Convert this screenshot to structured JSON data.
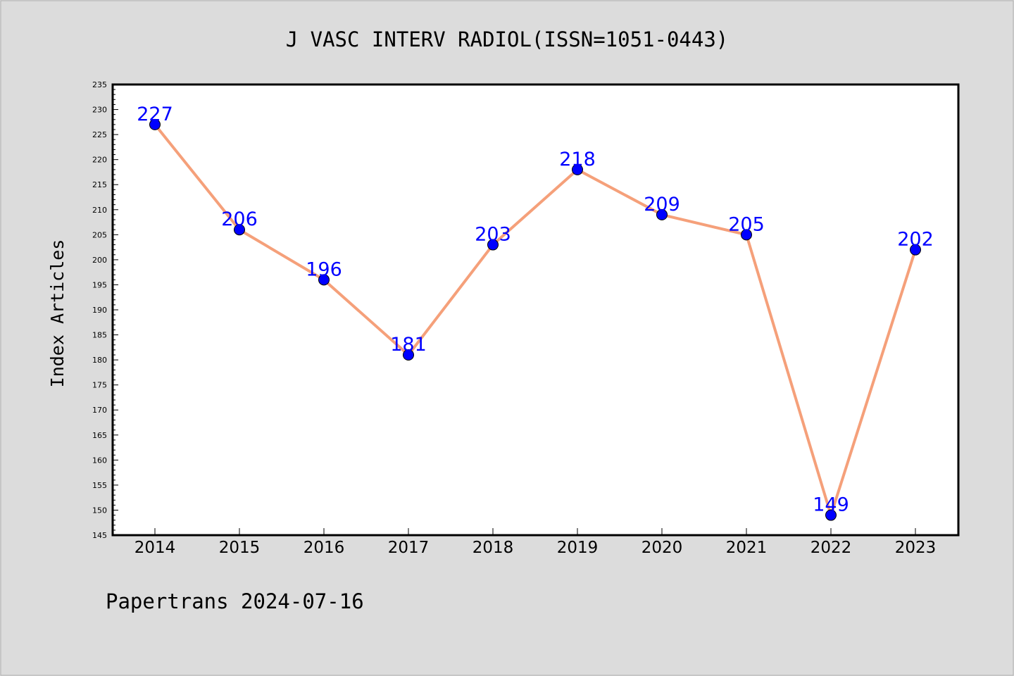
{
  "chart_data": {
    "type": "line",
    "title": "J VASC INTERV RADIOL(ISSN=1051-0443)",
    "xlabel": "",
    "ylabel": "Index Articles",
    "categories": [
      "2014",
      "2015",
      "2016",
      "2017",
      "2018",
      "2019",
      "2020",
      "2021",
      "2022",
      "2023"
    ],
    "series": [
      {
        "values": [
          227,
          206,
          196,
          181,
          203,
          218,
          209,
          205,
          149,
          202
        ],
        "line_color": "#f5a07a",
        "marker_color": "#0000ff"
      }
    ],
    "data_labels": [
      "227",
      "206",
      "196",
      "181",
      "203",
      "218",
      "209",
      "205",
      "149",
      "202"
    ],
    "ylim": [
      145,
      235
    ],
    "yticks": [
      145,
      150,
      155,
      160,
      165,
      170,
      175,
      180,
      185,
      190,
      195,
      200,
      205,
      210,
      215,
      220,
      225,
      230,
      235
    ],
    "grid": false,
    "legend": "none",
    "label_color": "#0000ff",
    "background_color": "#dcdcdc",
    "plot_background_color": "#ffffff"
  },
  "footer": {
    "watermark": "Papertrans 2024-07-16"
  }
}
